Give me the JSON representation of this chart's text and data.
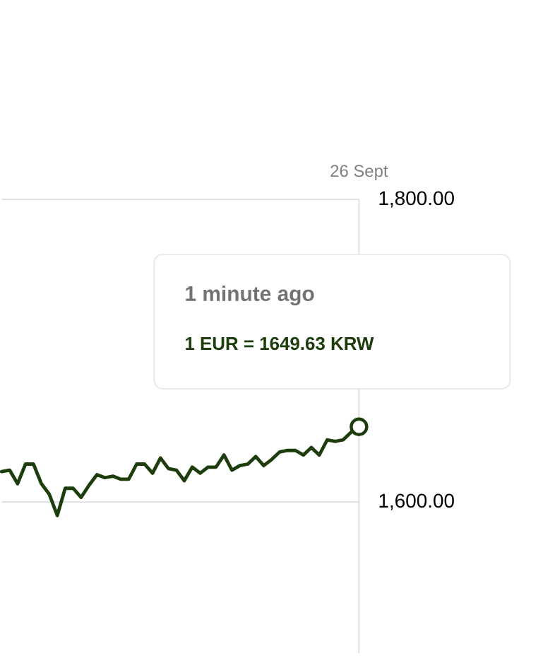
{
  "chart_data": {
    "type": "line",
    "categories": [
      null,
      null,
      null,
      null,
      null,
      null,
      null,
      null,
      null,
      null,
      null,
      null,
      null,
      null,
      null,
      null,
      null,
      null,
      null,
      null,
      null,
      null,
      null,
      null,
      null,
      null,
      null,
      null,
      null,
      null,
      null,
      null,
      null,
      null,
      null,
      null,
      null,
      null,
      null,
      null,
      null,
      null,
      null,
      null,
      null,
      null
    ],
    "series": [
      {
        "color": "#1d3d0c",
        "values": [
          1620,
          1621,
          1612,
          1625,
          1625,
          1612,
          1605,
          1591,
          1609,
          1609,
          1603,
          1611,
          1618,
          1616,
          1617,
          1615,
          1615,
          1625,
          1625,
          1619,
          1629,
          1622,
          1621,
          1614,
          1623,
          1619,
          1623,
          1623,
          1631,
          1621,
          1624,
          1625,
          1630,
          1624,
          1628,
          1633,
          1634,
          1634,
          1631,
          1636,
          1631,
          1641,
          1640,
          1641,
          1646,
          1649.63
        ]
      }
    ],
    "ylim": [
      1500,
      1800
    ],
    "yticks": [
      {
        "value": 1600,
        "label": "1,600.00"
      },
      {
        "value": 1800,
        "label": "1,800.00"
      }
    ],
    "grid": "y",
    "tick_labels": "y",
    "annotations": [
      "26 Sept",
      "1 minute ago",
      "1 EUR = 1649.63 KRW"
    ]
  }
}
